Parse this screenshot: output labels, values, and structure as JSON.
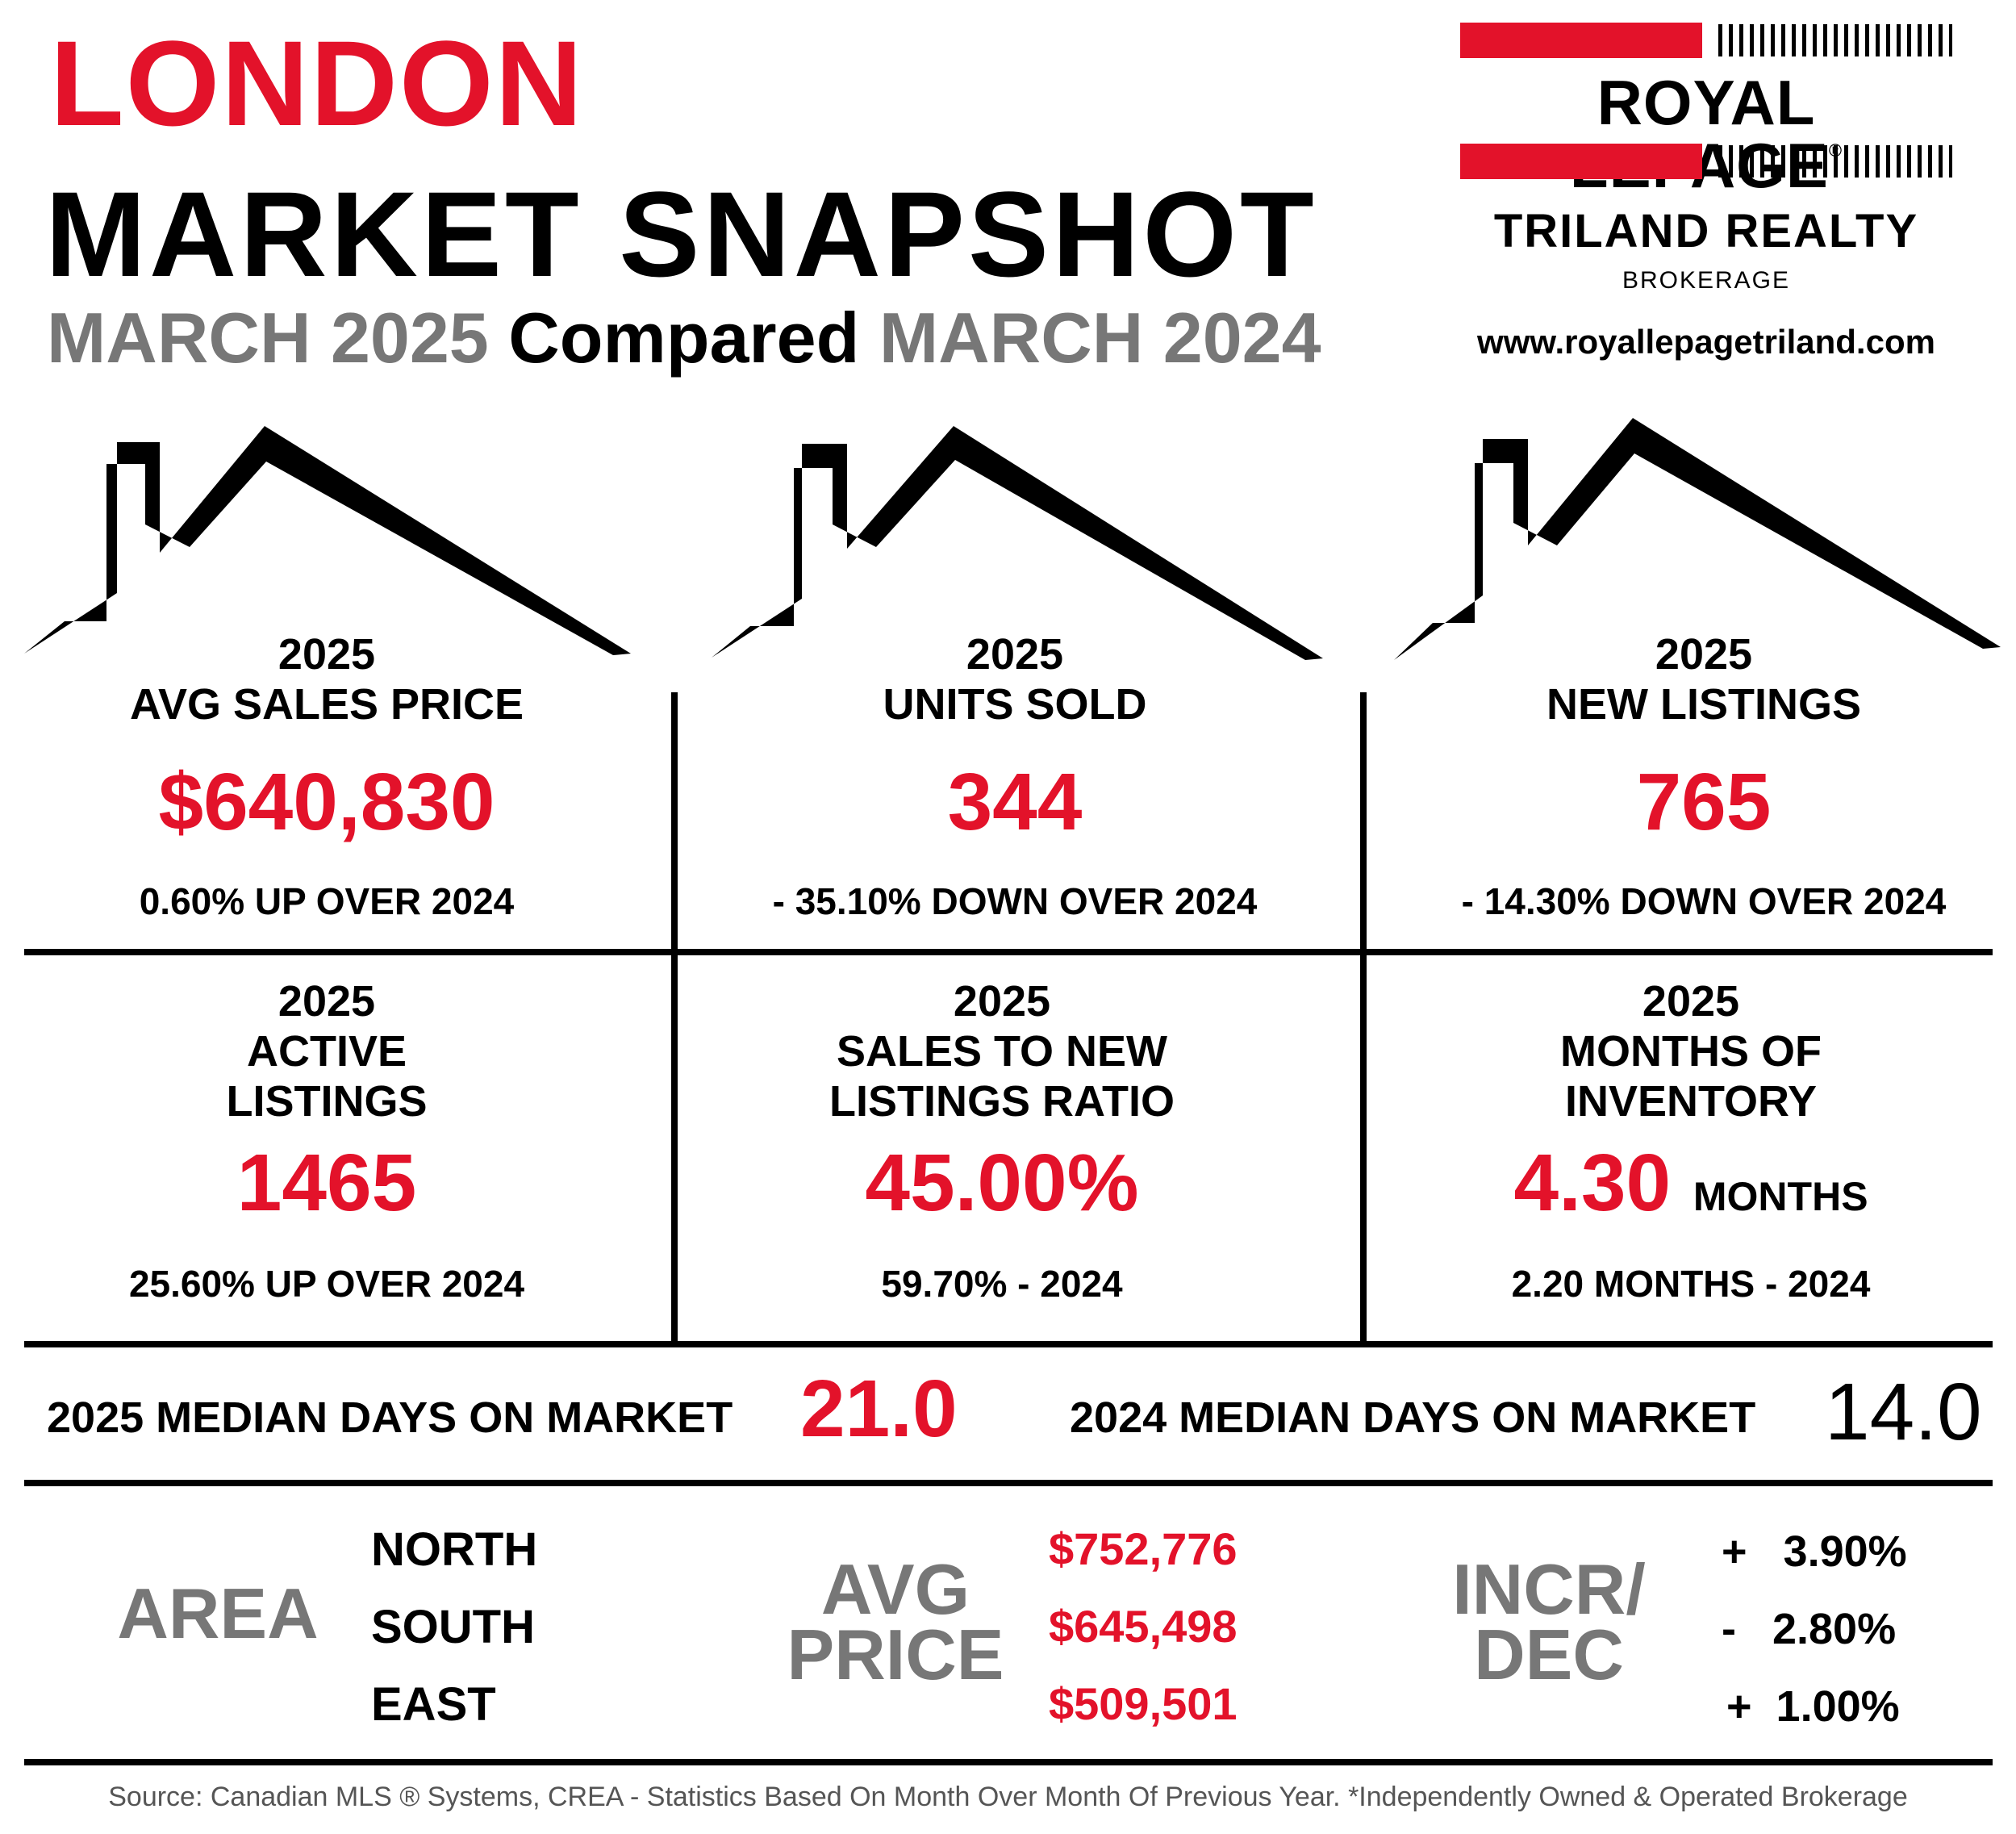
{
  "header": {
    "city": "LONDON",
    "title": "MARKET SNAPSHOT",
    "period_current": "MARCH 2025",
    "compared": "Compared",
    "period_previous": "MARCH 2024"
  },
  "logo": {
    "brand": "ROYAL LEPAGE",
    "brand_mark": "®",
    "company": "TRILAND REALTY",
    "brokerage": "BROKERAGE",
    "website": "www.royallepagetriland.com"
  },
  "metrics": [
    {
      "year": "2025",
      "label": "AVG SALES PRICE",
      "value": "$640,830",
      "unit": "",
      "change": "0.60% UP OVER 2024"
    },
    {
      "year": "2025",
      "label": "UNITS SOLD",
      "value": "344",
      "unit": "",
      "change": "- 35.10% DOWN OVER 2024"
    },
    {
      "year": "2025",
      "label": "NEW LISTINGS",
      "value": "765",
      "unit": "",
      "change": "- 14.30% DOWN OVER 2024"
    },
    {
      "year": "2025",
      "label": "ACTIVE LISTINGS",
      "label_line1": "ACTIVE",
      "label_line2": "LISTINGS",
      "value": "1465",
      "unit": "",
      "change": "25.60% UP OVER 2024"
    },
    {
      "year": "2025",
      "label": "SALES TO NEW LISTINGS RATIO",
      "label_line1": "SALES TO NEW",
      "label_line2": "LISTINGS RATIO",
      "value": "45.00%",
      "unit": "",
      "change": "59.70% - 2024"
    },
    {
      "year": "2025",
      "label": "MONTHS OF INVENTORY",
      "label_line1": "MONTHS OF",
      "label_line2": "INVENTORY",
      "value": "4.30",
      "unit": "MONTHS",
      "change": "2.20 MONTHS - 2024"
    }
  ],
  "days_on_market": {
    "current_label": "2025 MEDIAN DAYS ON MARKET",
    "current_value": "21.0",
    "previous_label": "2024 MEDIAN DAYS ON MARKET",
    "previous_value": "14.0"
  },
  "area_table": {
    "area_heading": "AREA",
    "price_heading_line1": "AVG",
    "price_heading_line2": "PRICE",
    "change_heading_line1": "INCR/",
    "change_heading_line2": "DEC",
    "rows": [
      {
        "area": "NORTH",
        "price": "$752,776",
        "change": "+   3.90%"
      },
      {
        "area": "SOUTH",
        "price": "$645,498",
        "change": "-   2.80%"
      },
      {
        "area": "EAST",
        "price": "$509,501",
        "change": "+  1.00%"
      }
    ]
  },
  "footer": "Source: Canadian MLS ® Systems, CREA - Statistics Based On Month Over Month Of Previous Year.  *Independently Owned & Operated Brokerage",
  "colors": {
    "accent_red": "#e3122a",
    "heading_grey": "#777777",
    "text": "#000000"
  },
  "icons": [
    "house-roof-icon",
    "house-roof-icon",
    "house-roof-icon"
  ]
}
